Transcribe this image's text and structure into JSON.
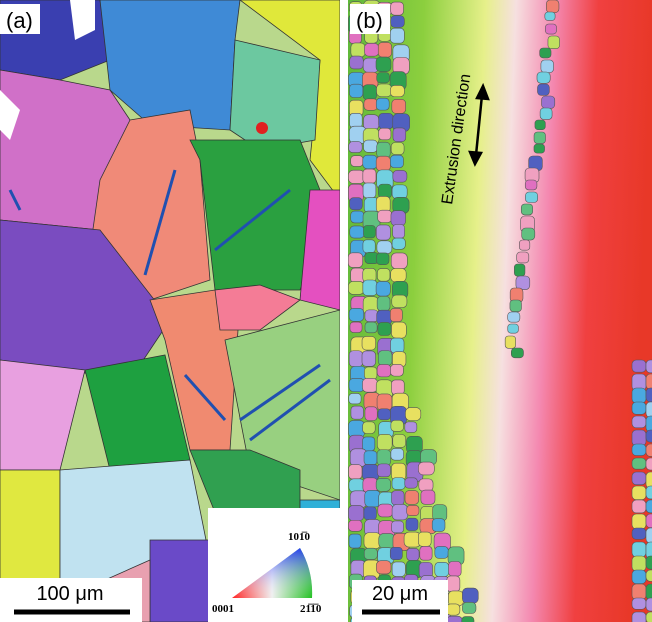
{
  "panels": [
    {
      "label": "(a)",
      "scale_bar": "100 μm"
    },
    {
      "label": "(b)",
      "scale_bar": "20 μm",
      "annotation": "Extrusion direction"
    }
  ],
  "legend": {
    "corner_labels": [
      "0001",
      "21̅1̅0",
      "101̅0"
    ]
  }
}
